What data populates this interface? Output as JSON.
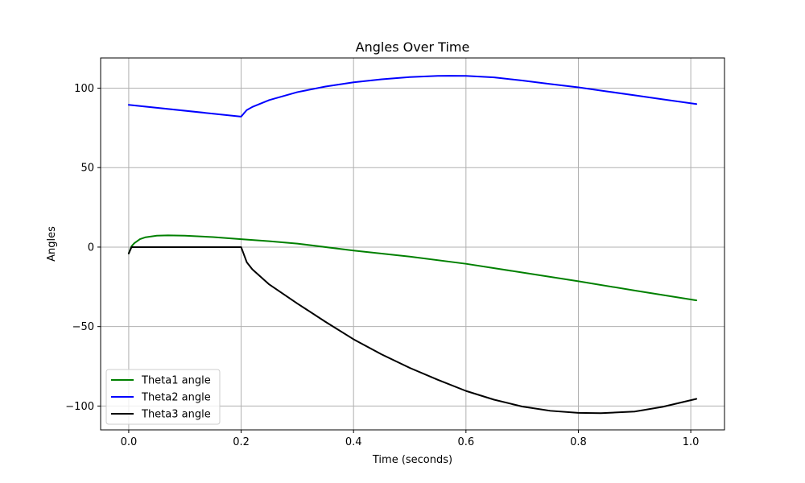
{
  "chart_data": {
    "type": "line",
    "title": "Angles Over Time",
    "xlabel": "Time (seconds)",
    "ylabel": "Angles",
    "xlim": [
      -0.05,
      1.06
    ],
    "ylim": [
      -115,
      119
    ],
    "xticks": [
      0.0,
      0.2,
      0.4,
      0.6,
      0.8,
      1.0
    ],
    "xtick_labels": [
      "0.0",
      "0.2",
      "0.4",
      "0.6",
      "0.8",
      "1.0"
    ],
    "yticks": [
      -100,
      -50,
      0,
      50,
      100
    ],
    "ytick_labels": [
      "−100",
      "−50",
      "0",
      "50",
      "100"
    ],
    "grid": true,
    "legend_position": "lower-left",
    "series": [
      {
        "name": "Theta1 angle",
        "color": "#008000",
        "x": [
          0.0,
          0.005,
          0.01,
          0.02,
          0.03,
          0.05,
          0.07,
          0.1,
          0.15,
          0.2,
          0.25,
          0.3,
          0.4,
          0.5,
          0.6,
          0.7,
          0.8,
          0.9,
          1.01
        ],
        "y": [
          -4,
          0.5,
          2.5,
          5,
          6.2,
          7.2,
          7.4,
          7.2,
          6.3,
          5,
          3.7,
          2.2,
          -2.2,
          -6,
          -10.5,
          -16,
          -21.5,
          -27.3,
          -33.5
        ]
      },
      {
        "name": "Theta2 angle",
        "color": "#0000ff",
        "x": [
          0.0,
          0.2,
          0.205,
          0.21,
          0.22,
          0.25,
          0.3,
          0.35,
          0.4,
          0.45,
          0.5,
          0.55,
          0.57,
          0.6,
          0.65,
          0.7,
          0.75,
          0.8,
          0.85,
          0.9,
          0.95,
          1.01
        ],
        "y": [
          89.5,
          82.1,
          84.2,
          86.2,
          88.2,
          92.5,
          97.5,
          101,
          103.7,
          105.6,
          107,
          107.7,
          107.8,
          107.7,
          106.8,
          104.8,
          102.6,
          100.5,
          98,
          95.5,
          93,
          90
        ]
      },
      {
        "name": "Theta3 angle",
        "color": "#000000",
        "x": [
          0.0,
          0.005,
          0.2,
          0.21,
          0.22,
          0.25,
          0.3,
          0.35,
          0.4,
          0.45,
          0.5,
          0.55,
          0.6,
          0.65,
          0.7,
          0.75,
          0.8,
          0.84,
          0.9,
          0.95,
          1.01
        ],
        "y": [
          -4,
          0,
          0,
          -9.5,
          -14,
          -23.5,
          -35.5,
          -47,
          -58,
          -67.5,
          -76,
          -83.5,
          -90.5,
          -96,
          -100.3,
          -103,
          -104.3,
          -104.5,
          -103.5,
          -100.5,
          -95.5
        ]
      }
    ]
  }
}
